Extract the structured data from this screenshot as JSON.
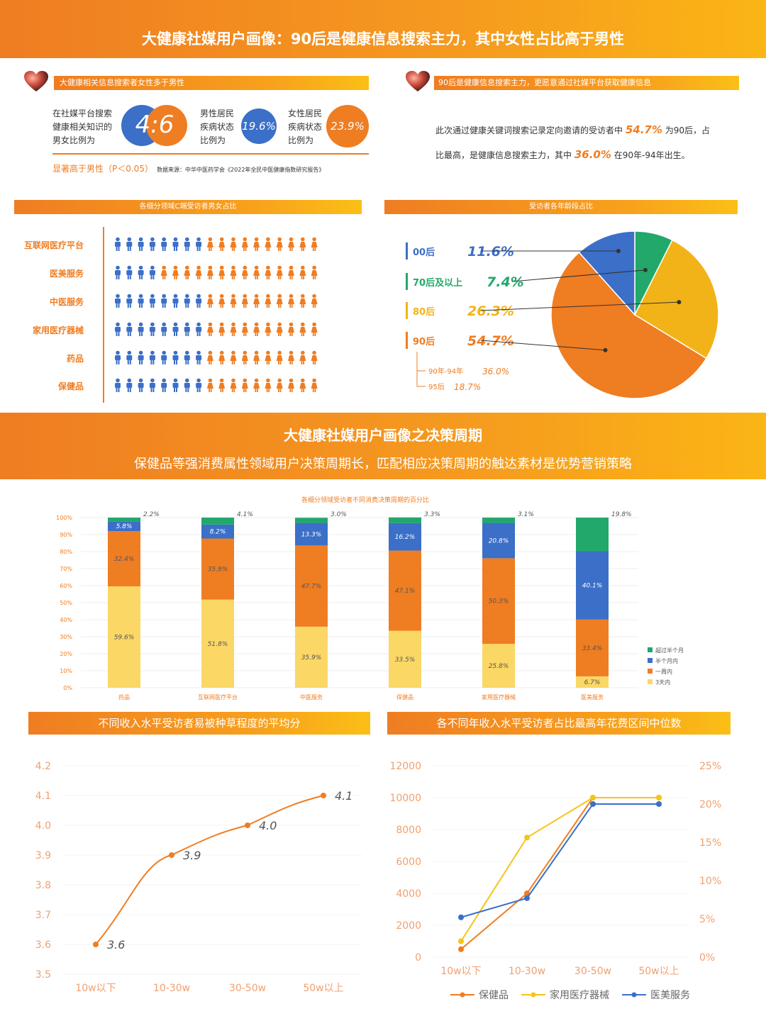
{
  "top_banner": {
    "title": "大健康社媒用户画像：90后是健康信息搜索主力，其中女性占比高于男性"
  },
  "left_panel": {
    "bar_title": "大健康相关信息搜索者女性多于男性",
    "ratio_text_l1": "在社媒平台搜索",
    "ratio_text_l2": "健康相关知识的",
    "ratio_text_l3": "男女比例为",
    "ratio_male": "4",
    "ratio_sep": ":",
    "ratio_female": "6",
    "male_l1": "男性居民",
    "male_l2": "疾病状态",
    "male_l3": "比例为",
    "male_value": "19.6%",
    "female_l1": "女性居民",
    "female_l2": "疾病状态",
    "female_l3": "比例为",
    "female_value": "23.9%",
    "sig_text": "显著高于男性（P＜0.05）",
    "source_text": "数据来源：中华中医药学会《2022年全民中医健康指数研究报告》"
  },
  "right_panel": {
    "bar_title": "90后是健康信息搜索主力，更愿意通过社媒平台获取健康信息",
    "line1_a": "此次通过健康关键词搜索记录定向邀请的受访者中",
    "line1_v": "54.7%",
    "line1_b": "为90后，占",
    "line2_a": "比最高，是健康信息搜索主力，其中",
    "line2_v": "36.0%",
    "line2_b": "在90年-94年出生。"
  },
  "gender_chart": {
    "bar_title": "各细分领域C端受访者男女占比",
    "male_color": "#3b6fc8",
    "female_color": "#ef7d22",
    "rows": [
      {
        "label": "互联网医疗平台",
        "male": 8,
        "female": 10
      },
      {
        "label": "医美服务",
        "male": 4,
        "female": 14
      },
      {
        "label": "中医服务",
        "male": 8,
        "female": 10
      },
      {
        "label": "家用医疗器械",
        "male": 8,
        "female": 10
      },
      {
        "label": "药品",
        "male": 8,
        "female": 10
      },
      {
        "label": "保健品",
        "male": 8,
        "female": 10
      }
    ]
  },
  "age_chart": {
    "bar_title": "受访者各年龄段占比",
    "items": [
      {
        "label": "00后",
        "value": "11.6%",
        "color": "#3b6fc8"
      },
      {
        "label": "70后及以上",
        "value": "7.4%",
        "color": "#22a86b"
      },
      {
        "label": "80后",
        "value": "26.3%",
        "color": "#f2b318"
      },
      {
        "label": "90后",
        "value": "54.7%",
        "color": "#ef7d22"
      }
    ],
    "sub_items": [
      {
        "label": "90年-94年",
        "value": "36.0%"
      },
      {
        "label": "95后",
        "value": "18.7%"
      }
    ]
  },
  "mid_banner": {
    "title": "大健康社媒用户画像之决策周期",
    "subtitle": "保健品等强消费属性领域用户决策周期长，匹配相应决策周期的触达素材是优势营销策略"
  },
  "chart_data": [
    {
      "type": "bar",
      "stacked": true,
      "title": "各细分领域受访者不同消费决策周期的百分比",
      "categories": [
        "药品",
        "互联网医疗平台",
        "中医服务",
        "保健品",
        "家用医疗器械",
        "医美服务"
      ],
      "series": [
        {
          "name": "3天内",
          "color": "#fbd766",
          "values": [
            59.6,
            51.8,
            35.9,
            33.5,
            25.8,
            6.7
          ],
          "labels": [
            "59.6%",
            "51.8%",
            "35.9%",
            "33.5%",
            "25.8%",
            "6.7%"
          ]
        },
        {
          "name": "一周内",
          "color": "#ef7d22",
          "values": [
            32.4,
            35.9,
            47.7,
            47.1,
            50.3,
            33.4
          ],
          "labels": [
            "32.4%",
            "35.9%",
            "47.7%",
            "47.1%",
            "50.3%",
            "33.4%"
          ]
        },
        {
          "name": "半个月内",
          "color": "#3b6fc8",
          "values": [
            5.8,
            8.2,
            13.3,
            16.2,
            20.8,
            40.1
          ],
          "labels": [
            "5.8%",
            "8.2%",
            "13.3%",
            "16.2%",
            "20.8%",
            "40.1%"
          ]
        },
        {
          "name": "超过半个月",
          "color": "#22a86b",
          "values": [
            2.2,
            4.1,
            3.0,
            3.3,
            3.1,
            19.8
          ],
          "labels": [
            "2.2%",
            "4.1%",
            "3.0%",
            "3.3%",
            "3.1%",
            "19.8%"
          ]
        }
      ],
      "y_ticks": [
        "0%",
        "10%",
        "20%",
        "30%",
        "40%",
        "50%",
        "60%",
        "70%",
        "80%",
        "90%",
        "100%"
      ],
      "ylim": [
        0,
        100
      ],
      "legend_order": [
        "超过半个月",
        "半个月内",
        "一周内",
        "3天内"
      ],
      "legend": "right"
    },
    {
      "type": "line",
      "title": "不同收入水平受访者易被种草程度的平均分",
      "categories": [
        "10w以下",
        "10-30w",
        "30-50w",
        "50w以上"
      ],
      "series": [
        {
          "color": "#ef7d22",
          "values": [
            3.6,
            3.9,
            4.0,
            4.1
          ]
        }
      ],
      "y_ticks": [
        "3.5",
        "3.6",
        "3.7",
        "3.8",
        "3.9",
        "4.0",
        "4.1",
        "4.2"
      ],
      "ylim": [
        3.5,
        4.2
      ]
    },
    {
      "type": "line",
      "title": "各不同年收入水平受访者占比最高年花费区间中位数",
      "categories": [
        "10w以下",
        "10-30w",
        "30-50w",
        "50w以上"
      ],
      "series": [
        {
          "name": "保健品",
          "color": "#ef7d22",
          "values": [
            500,
            4000,
            10000,
            10000
          ]
        },
        {
          "name": "家用医疗器械",
          "color": "#f5c518",
          "values": [
            1000,
            7500,
            10000,
            10000
          ]
        },
        {
          "name": "医美服务",
          "color": "#3b6fc8",
          "values": [
            2500,
            3700,
            9600,
            9600
          ]
        }
      ],
      "y_ticks": [
        "0",
        "2000",
        "4000",
        "6000",
        "8000",
        "10000",
        "12000"
      ],
      "ylim": [
        0,
        12000
      ],
      "y2_ticks": [
        "0%",
        "5%",
        "10%",
        "15%",
        "20%",
        "25%"
      ],
      "legend": "bottom"
    }
  ]
}
